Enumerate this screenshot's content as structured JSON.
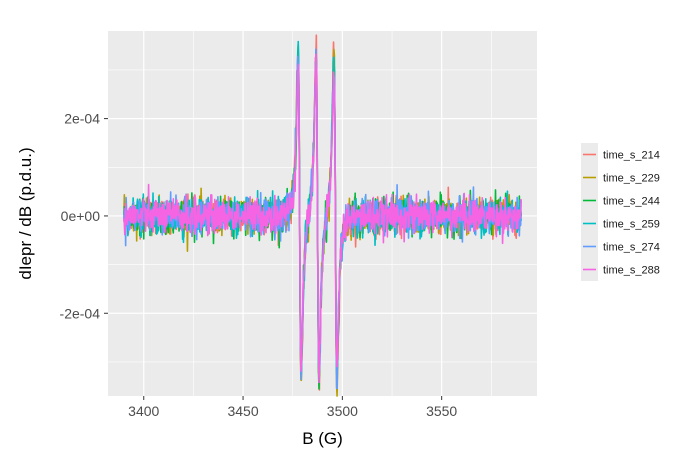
{
  "chart_data": {
    "type": "line",
    "xlabel": "B (G)",
    "ylabel": "dIepr / dB (p.d.u.)",
    "xlim": [
      3382,
      3598
    ],
    "ylim": [
      -0.00037,
      0.00038
    ],
    "x_ticks": [
      {
        "value": 3400,
        "label": "3400"
      },
      {
        "value": 3450,
        "label": "3450"
      },
      {
        "value": 3500,
        "label": "3500"
      },
      {
        "value": 3550,
        "label": "3550"
      }
    ],
    "y_ticks": [
      {
        "value": -0.0002,
        "label": "-2e-04"
      },
      {
        "value": 0,
        "label": "0e+00"
      },
      {
        "value": 0.0002,
        "label": "2e-04"
      }
    ],
    "x_range_data": [
      3390,
      3590
    ],
    "noise_amplitude": 4e-05,
    "spectrum_shape": {
      "lines": [
        {
          "center": 3478.5,
          "half_width": 1.3
        },
        {
          "center": 3487.5,
          "half_width": 1.3
        },
        {
          "center": 3496.5,
          "half_width": 1.3
        }
      ]
    },
    "legend_position": "right",
    "grid": true,
    "series": [
      {
        "name": "time_s_214",
        "color": "#F8766D",
        "peak": 0.000345
      },
      {
        "name": "time_s_229",
        "color": "#B79F00",
        "peak": 0.00034
      },
      {
        "name": "time_s_244",
        "color": "#00BA38",
        "peak": 0.000335
      },
      {
        "name": "time_s_259",
        "color": "#00BFC4",
        "peak": 0.00033
      },
      {
        "name": "time_s_274",
        "color": "#619CFF",
        "peak": 0.000325
      },
      {
        "name": "time_s_288",
        "color": "#F564E3",
        "peak": 0.00032
      }
    ]
  }
}
